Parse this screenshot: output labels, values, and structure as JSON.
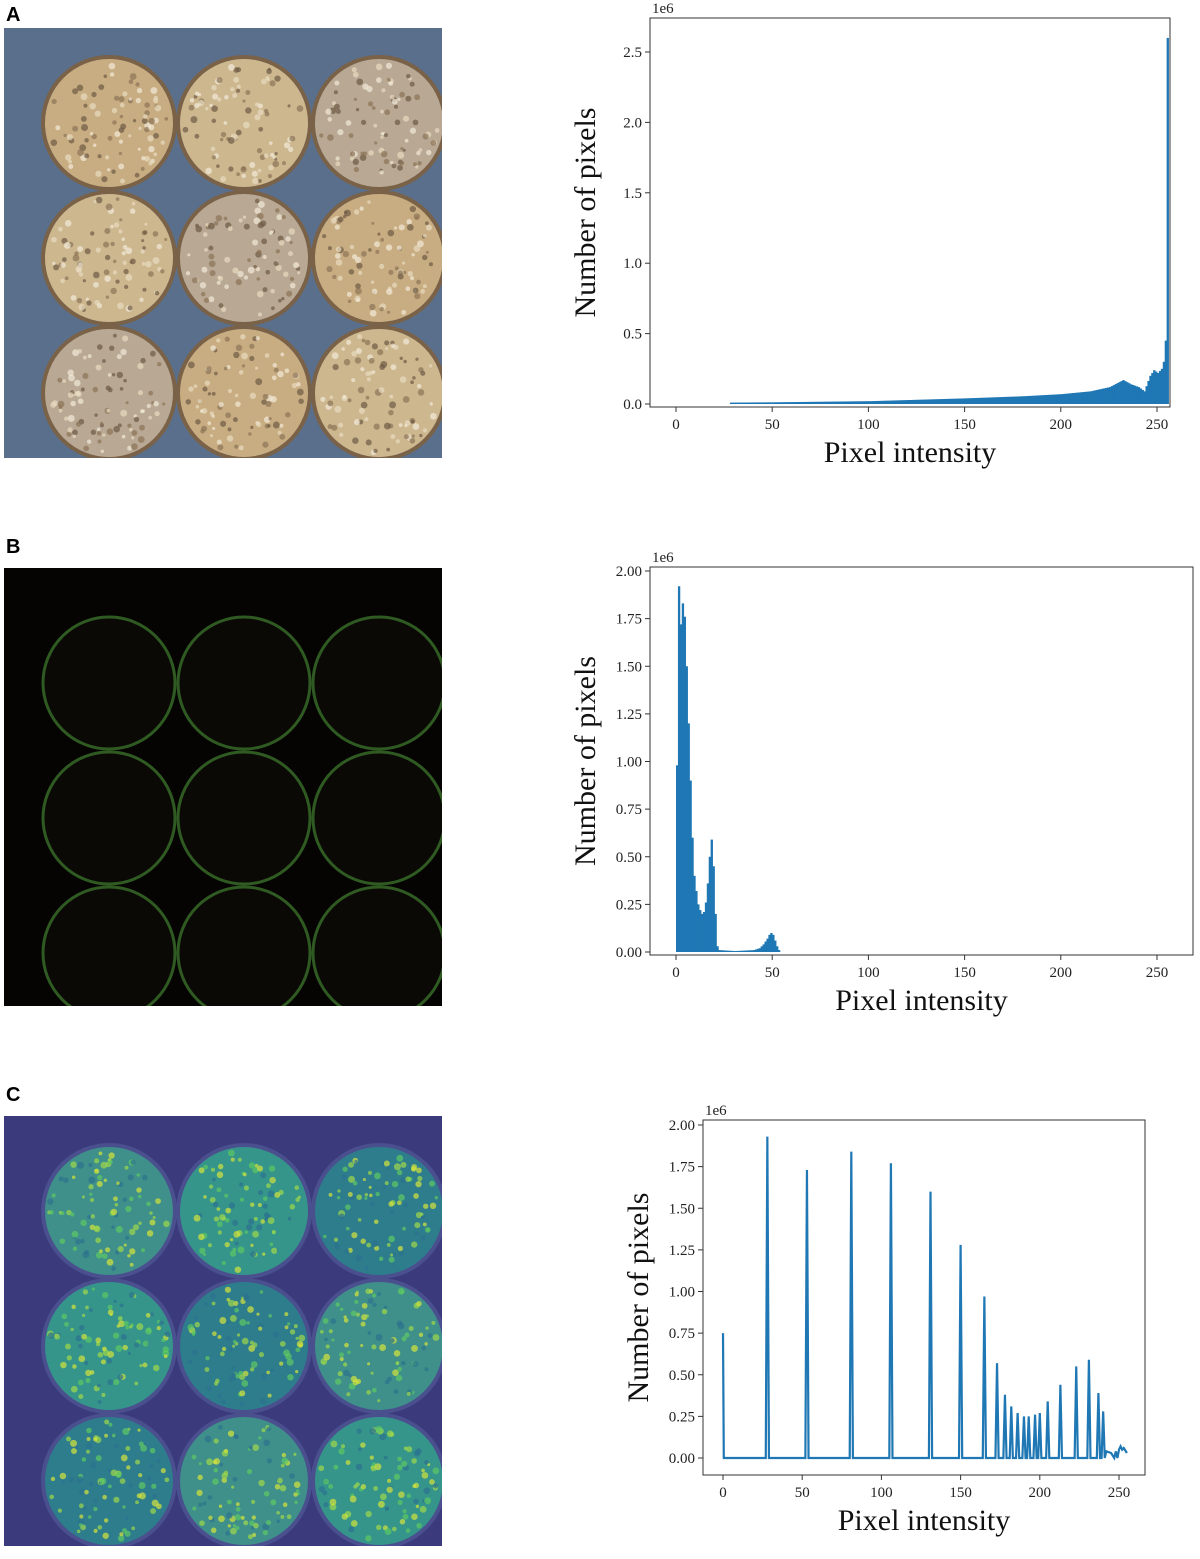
{
  "panels": [
    {
      "label": "A",
      "image": "RGB photo of 9 soil pots in tray"
    },
    {
      "label": "B",
      "image": "dark image with 9 green circle outlines"
    },
    {
      "label": "C",
      "image": "viridis false-color image of 9 soil pots"
    }
  ],
  "chart_data": [
    {
      "type": "bar",
      "title": "",
      "xlabel": "Pixel intensity",
      "ylabel": "Number of pixels",
      "y_scale_label": "1e6",
      "xlim": [
        -13,
        263
      ],
      "ylim": [
        0,
        2.6
      ],
      "xticks": [
        0,
        50,
        100,
        150,
        200,
        250
      ],
      "yticks": [
        "0.0",
        "0.5",
        "1.0",
        "1.5",
        "2.0",
        "2.5"
      ],
      "color": "#1f77b4",
      "x": [
        0,
        27,
        28,
        50,
        100,
        150,
        180,
        200,
        215,
        225,
        232,
        236,
        240,
        243,
        246,
        248,
        250,
        252,
        253,
        254,
        255
      ],
      "values": [
        0,
        0,
        0.01,
        0.012,
        0.02,
        0.04,
        0.055,
        0.07,
        0.09,
        0.12,
        0.17,
        0.14,
        0.12,
        0.09,
        0.2,
        0.24,
        0.22,
        0.25,
        0.3,
        0.45,
        2.6
      ]
    },
    {
      "type": "bar",
      "title": "",
      "xlabel": "Pixel intensity",
      "ylabel": "Number of pixels",
      "y_scale_label": "1e6",
      "xlim": [
        -13,
        270
      ],
      "ylim": [
        0,
        2.0
      ],
      "xticks": [
        0,
        50,
        100,
        150,
        200,
        250
      ],
      "yticks": [
        "0.00",
        "0.25",
        "0.50",
        "0.75",
        "1.00",
        "1.25",
        "1.50",
        "1.75",
        "2.00"
      ],
      "color": "#1f77b4",
      "x": [
        0,
        1,
        2,
        3,
        4,
        5,
        6,
        7,
        8,
        9,
        10,
        11,
        12,
        13,
        14,
        15,
        16,
        17,
        18,
        19,
        20,
        21,
        22,
        30,
        40,
        43,
        45,
        47,
        48,
        49,
        50,
        51,
        52,
        53,
        54
      ],
      "values": [
        0.98,
        1.92,
        1.72,
        1.83,
        1.76,
        1.5,
        1.2,
        0.9,
        0.6,
        0.4,
        0.32,
        0.25,
        0.22,
        0.2,
        0.21,
        0.26,
        0.36,
        0.5,
        0.59,
        0.45,
        0.2,
        0.03,
        0.01,
        0.005,
        0.01,
        0.02,
        0.04,
        0.07,
        0.09,
        0.1,
        0.09,
        0.06,
        0.03,
        0.01,
        0
      ]
    },
    {
      "type": "line",
      "title": "",
      "xlabel": "Pixel intensity",
      "ylabel": "Number of pixels",
      "y_scale_label": "1e6",
      "xlim": [
        -13,
        265
      ],
      "ylim": [
        0,
        2.0
      ],
      "xticks": [
        0,
        50,
        100,
        150,
        200,
        250
      ],
      "yticks": [
        "0.00",
        "0.25",
        "0.50",
        "0.75",
        "1.00",
        "1.25",
        "1.50",
        "1.75",
        "2.00"
      ],
      "color": "#1f77b4",
      "peaks_x": [
        0,
        28,
        53,
        81,
        106,
        131,
        150,
        165,
        173,
        178,
        182,
        186,
        190,
        193,
        197,
        200,
        205,
        213,
        223,
        231,
        237,
        240
      ],
      "peaks_y": [
        0.75,
        1.93,
        1.73,
        1.84,
        1.77,
        1.6,
        1.28,
        0.97,
        0.57,
        0.38,
        0.31,
        0.27,
        0.25,
        0.25,
        0.26,
        0.27,
        0.34,
        0.44,
        0.55,
        0.59,
        0.39,
        0.28
      ],
      "tail_x": [
        242,
        245,
        247,
        248,
        249,
        250,
        251,
        252,
        253,
        255
      ],
      "tail_y": [
        0.04,
        0.03,
        0.0,
        0.04,
        0.0,
        0.05,
        0.07,
        0.05,
        0.06,
        0.03
      ]
    }
  ]
}
